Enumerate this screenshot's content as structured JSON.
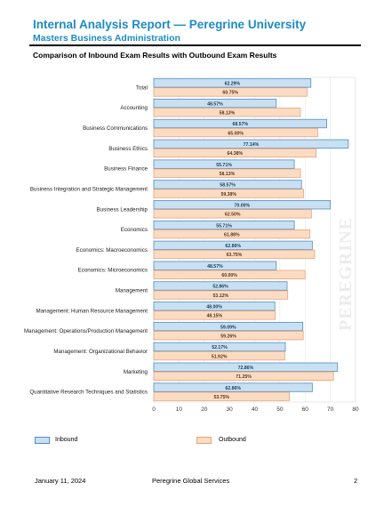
{
  "header": {
    "title": "Internal Analysis Report — Peregrine University",
    "subtitle": "Masters Business Administration"
  },
  "watermark": "PEREGRINE",
  "footer": {
    "date": "January 11, 2024",
    "company": "Peregrine Global Services",
    "page": "2"
  },
  "colors": {
    "inbound_fill": "#c8e0f2",
    "inbound_stroke": "#4e8fc2",
    "outbound_fill": "#fbdcc3",
    "outbound_stroke": "#e9a27a",
    "title_blue": "#1e8bc3"
  },
  "chart_data": {
    "type": "bar",
    "orientation": "horizontal",
    "title": "Comparison of Inbound Exam Results with Outbound Exam Results",
    "xlim": [
      0,
      80
    ],
    "xticks": [
      "0",
      "10",
      "20",
      "30",
      "40",
      "50",
      "60",
      "70",
      "80"
    ],
    "grid": true,
    "legend_position": "bottom",
    "categories": [
      "Total",
      "Accounting",
      "Business Communications",
      "Business Ethics",
      "Business Finance",
      "Business Integration and Strategic Management",
      "Business Leadership",
      "Economics",
      "Economics: Macroeconomics",
      "Economics: Microeconomics",
      "Management",
      "Management: Human Resource Management",
      "Management: Operations/Production Management",
      "Management: Organizational Behavior",
      "Marketing",
      "Quantitative Research Techniques and Statistics"
    ],
    "series": [
      {
        "name": "Inbound",
        "values": [
          62.29,
          48.57,
          68.57,
          77.14,
          55.71,
          58.57,
          70.0,
          55.71,
          62.86,
          48.57,
          52.86,
          48.0,
          59.09,
          52.17,
          72.86,
          62.86
        ],
        "labels": [
          "62.29%",
          "48.57%",
          "68.57%",
          "77.14%",
          "55.71%",
          "58.57%",
          "70.00%",
          "55.71%",
          "62.86%",
          "48.57%",
          "52.86%",
          "48.00%",
          "59.09%",
          "52.17%",
          "72.86%",
          "62.86%"
        ]
      },
      {
        "name": "Outbound",
        "values": [
          60.75,
          58.13,
          65.0,
          64.38,
          58.13,
          59.38,
          62.5,
          61.88,
          63.75,
          60.0,
          53.12,
          48.15,
          59.26,
          51.92,
          71.25,
          53.75
        ],
        "labels": [
          "60.75%",
          "58.13%",
          "65.00%",
          "64.38%",
          "58.13%",
          "59.38%",
          "62.50%",
          "61.88%",
          "63.75%",
          "60.00%",
          "53.12%",
          "48.15%",
          "59.26%",
          "51.92%",
          "71.25%",
          "53.75%"
        ]
      }
    ]
  }
}
